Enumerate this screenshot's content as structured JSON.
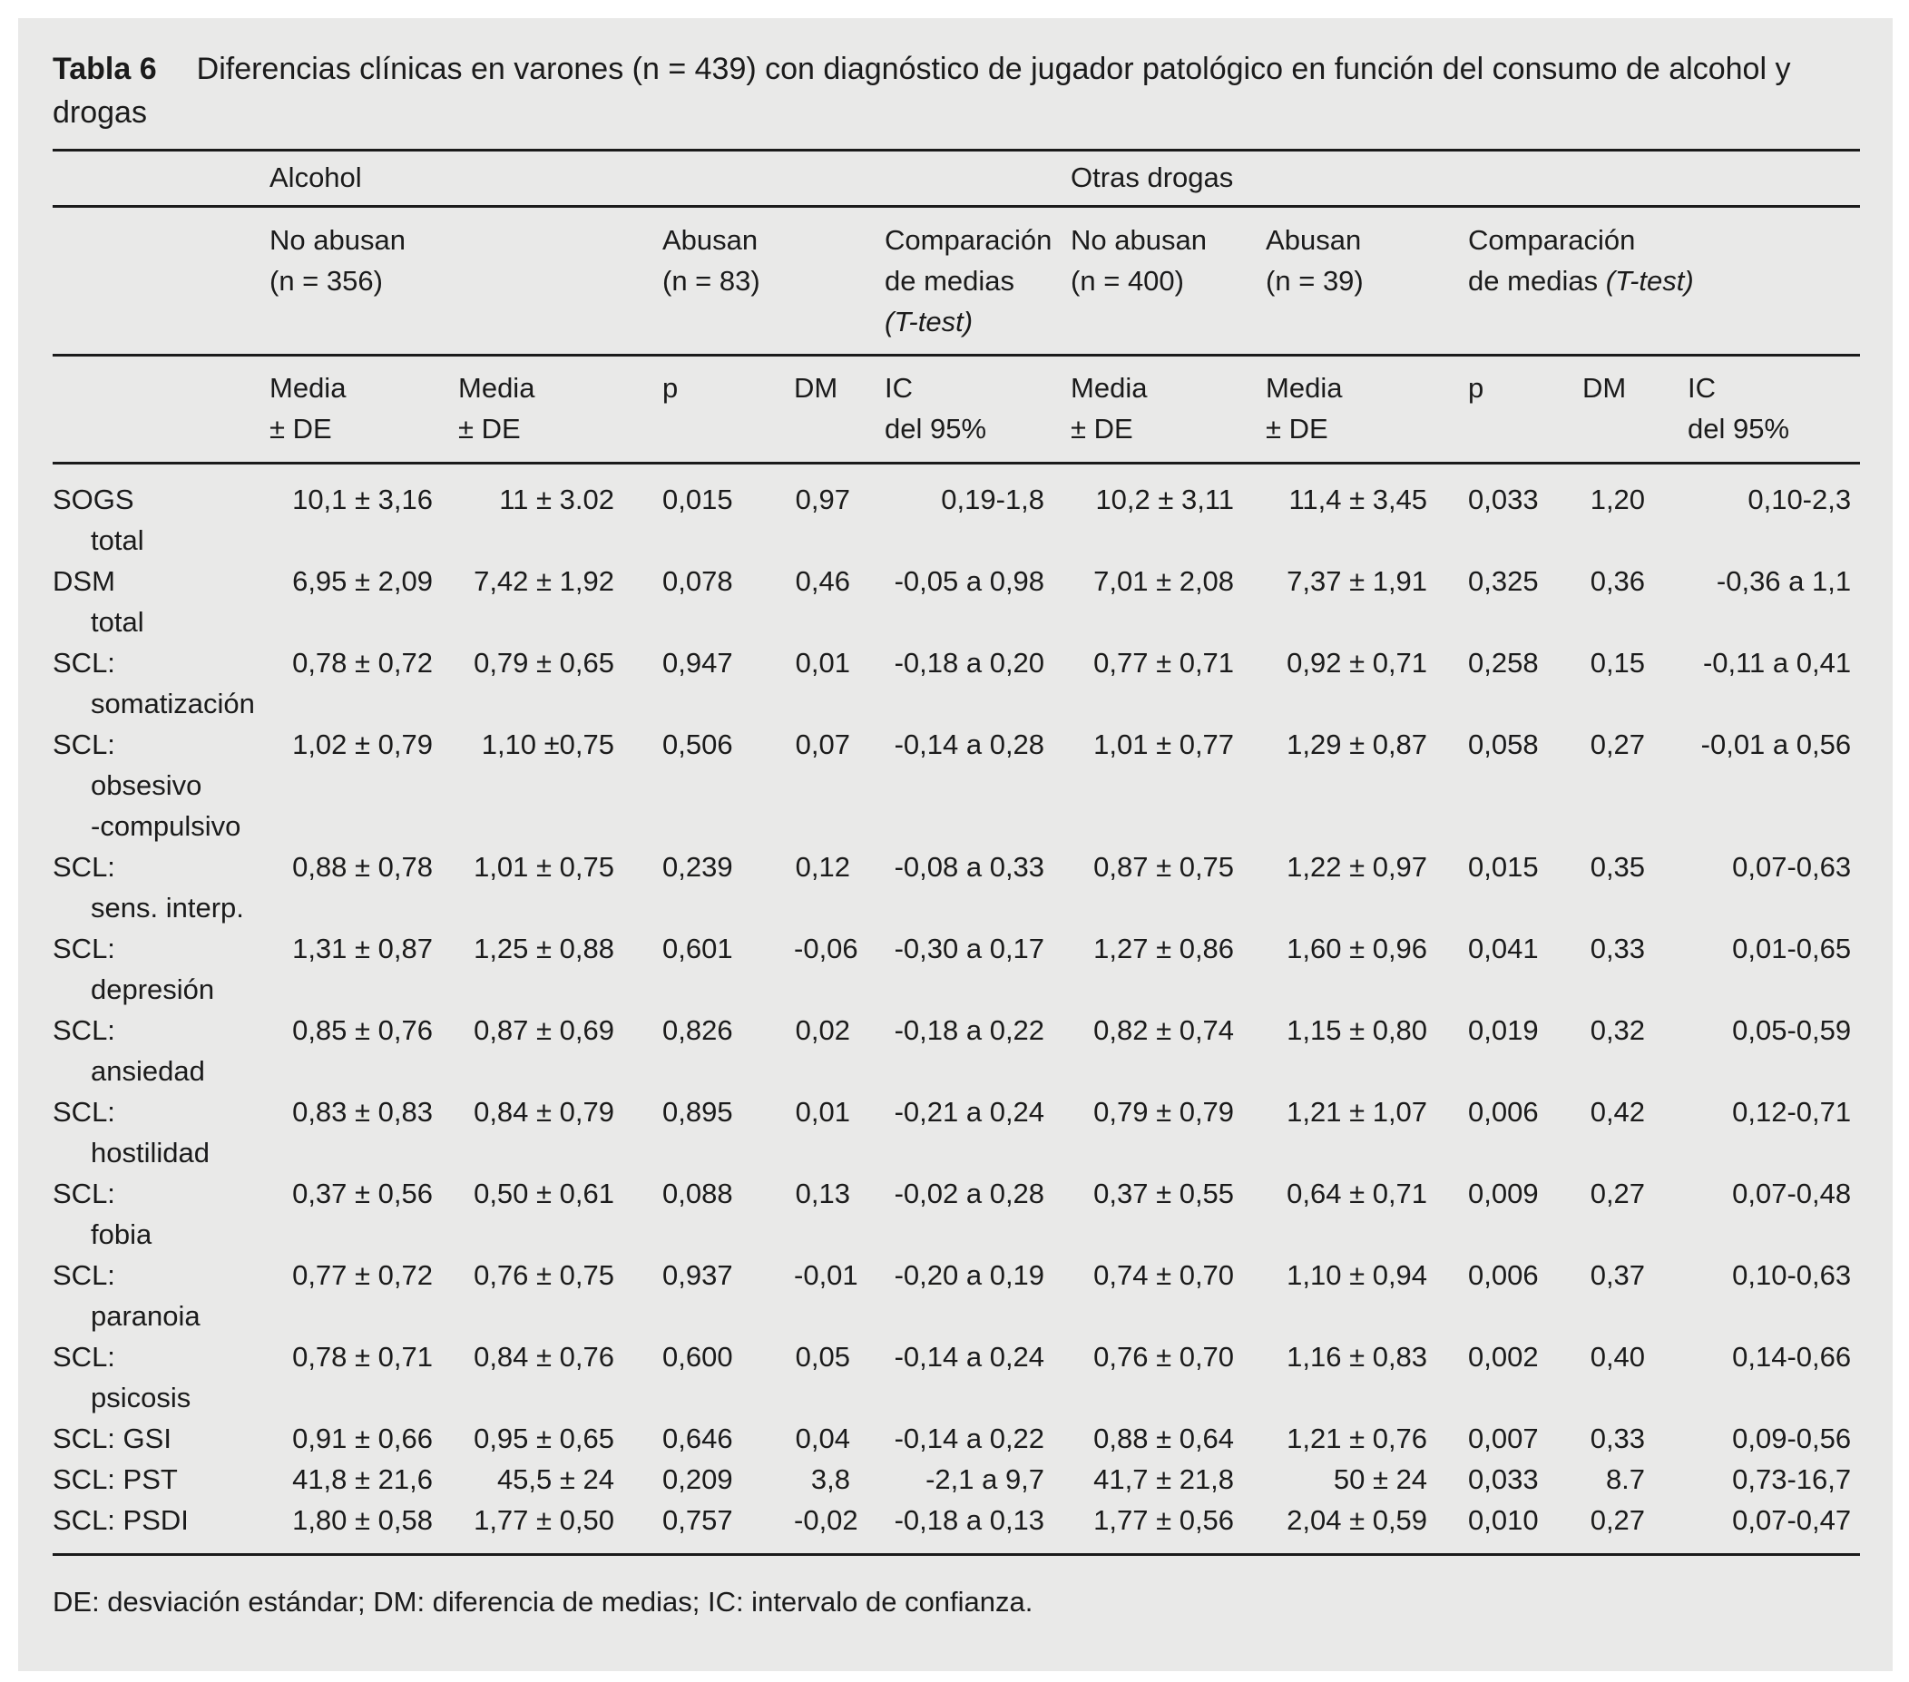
{
  "page": {
    "panel_background": "#e9e9e8",
    "page_background": "#ffffff",
    "text_color": "#1b1b1b",
    "rule_color": "#1b1b1b"
  },
  "title": {
    "label": "Tabla 6",
    "text": "Diferencias clínicas en varones (n = 439) con diagnóstico de jugador patológico en función del consumo de alcohol y drogas"
  },
  "table": {
    "top_groups": {
      "alcohol": "Alcohol",
      "drugs": "Otras drogas"
    },
    "subgroups": {
      "alcohol_no_abuse": {
        "name": "No abusan",
        "n": "(n = 356)"
      },
      "alcohol_abuse": {
        "name": "Abusan",
        "n": "(n = 83)"
      },
      "alcohol_comparison": {
        "l1": "Comparación",
        "l2": "de medias",
        "l3": "(T-test)"
      },
      "drugs_no_abuse": {
        "name": "No abusan",
        "n": "(n = 400)"
      },
      "drugs_abuse": {
        "name": "Abusan",
        "n": "(n = 39)"
      },
      "drugs_comparison": {
        "l1": "Comparación",
        "l2a": "de medias ",
        "l2b": "(T-test)"
      }
    },
    "columns": {
      "media_a_no": {
        "l1": "Media",
        "l2": "± DE"
      },
      "media_a_ab": {
        "l1": "Media",
        "l2": "± DE"
      },
      "p_a": "p",
      "dm_a": "DM",
      "ic_a": {
        "l1": "IC",
        "l2": "del 95%"
      },
      "media_d_no": {
        "l1": "Media",
        "l2": "± DE"
      },
      "media_d_ab": {
        "l1": "Media",
        "l2": "± DE"
      },
      "p_d": "p",
      "dm_d": "DM",
      "ic_d": {
        "l1": "IC",
        "l2": "del 95%"
      }
    },
    "rows": [
      {
        "label_lines": [
          "SOGS",
          "total"
        ],
        "cells": [
          "10,1 ± 3,16",
          "11 ± 3.02",
          "0,015",
          "0,97",
          "0,19-1,8",
          "10,2 ± 3,11",
          "11,4 ± 3,45",
          "0,033",
          "1,20",
          "0,10-2,3"
        ]
      },
      {
        "label_lines": [
          "DSM",
          "total"
        ],
        "cells": [
          "6,95 ± 2,09",
          "7,42 ± 1,92",
          "0,078",
          "0,46",
          "-0,05 a 0,98",
          "7,01 ± 2,08",
          "7,37 ± 1,91",
          "0,325",
          "0,36",
          "-0,36 a 1,1"
        ]
      },
      {
        "label_lines": [
          "SCL:",
          "somatización"
        ],
        "cells": [
          "0,78 ± 0,72",
          "0,79 ± 0,65",
          "0,947",
          "0,01",
          "-0,18 a 0,20",
          "0,77 ± 0,71",
          "0,92 ± 0,71",
          "0,258",
          "0,15",
          "-0,11 a 0,41"
        ]
      },
      {
        "label_lines": [
          "SCL:",
          "obsesivo",
          "-compulsivo"
        ],
        "cells": [
          "1,02 ± 0,79",
          "1,10 ±0,75",
          "0,506",
          "0,07",
          "-0,14 a 0,28",
          "1,01 ± 0,77",
          "1,29 ± 0,87",
          "0,058",
          "0,27",
          "-0,01 a 0,56"
        ]
      },
      {
        "label_lines": [
          "SCL:",
          "sens. interp."
        ],
        "cells": [
          "0,88 ± 0,78",
          "1,01 ± 0,75",
          "0,239",
          "0,12",
          "-0,08 a 0,33",
          "0,87 ± 0,75",
          "1,22 ± 0,97",
          "0,015",
          "0,35",
          "0,07-0,63"
        ]
      },
      {
        "label_lines": [
          "SCL:",
          "depresión"
        ],
        "cells": [
          "1,31 ± 0,87",
          "1,25 ± 0,88",
          "0,601",
          "-0,06",
          "-0,30 a 0,17",
          "1,27 ± 0,86",
          "1,60 ± 0,96",
          "0,041",
          "0,33",
          "0,01-0,65"
        ]
      },
      {
        "label_lines": [
          "SCL:",
          "ansiedad"
        ],
        "cells": [
          "0,85 ± 0,76",
          "0,87 ± 0,69",
          "0,826",
          "0,02",
          "-0,18 a 0,22",
          "0,82 ± 0,74",
          "1,15 ± 0,80",
          "0,019",
          "0,32",
          "0,05-0,59"
        ]
      },
      {
        "label_lines": [
          "SCL:",
          "hostilidad"
        ],
        "cells": [
          "0,83 ± 0,83",
          "0,84 ± 0,79",
          "0,895",
          "0,01",
          "-0,21 a 0,24",
          "0,79 ± 0,79",
          "1,21 ± 1,07",
          "0,006",
          "0,42",
          "0,12-0,71"
        ]
      },
      {
        "label_lines": [
          "SCL:",
          "fobia"
        ],
        "cells": [
          "0,37 ± 0,56",
          "0,50 ± 0,61",
          "0,088",
          "0,13",
          "-0,02 a 0,28",
          "0,37 ± 0,55",
          "0,64 ± 0,71",
          "0,009",
          "0,27",
          "0,07-0,48"
        ]
      },
      {
        "label_lines": [
          "SCL:",
          "paranoia"
        ],
        "cells": [
          "0,77 ± 0,72",
          "0,76 ± 0,75",
          "0,937",
          "-0,01",
          "-0,20 a 0,19",
          "0,74 ± 0,70",
          "1,10 ± 0,94",
          "0,006",
          "0,37",
          "0,10-0,63"
        ]
      },
      {
        "label_lines": [
          "SCL:",
          "psicosis"
        ],
        "cells": [
          "0,78 ± 0,71",
          "0,84 ± 0,76",
          "0,600",
          "0,05",
          "-0,14 a 0,24",
          "0,76 ± 0,70",
          "1,16 ± 0,83",
          "0,002",
          "0,40",
          "0,14-0,66"
        ]
      },
      {
        "label_lines": [
          "SCL: GSI"
        ],
        "cells": [
          "0,91 ± 0,66",
          "0,95 ± 0,65",
          "0,646",
          "0,04",
          "-0,14 a 0,22",
          "0,88 ± 0,64",
          "1,21 ± 0,76",
          "0,007",
          "0,33",
          "0,09-0,56"
        ]
      },
      {
        "label_lines": [
          "SCL: PST"
        ],
        "cells": [
          "41,8 ± 21,6",
          "45,5 ± 24",
          "0,209",
          "3,8",
          "-2,1 a 9,7",
          "41,7 ± 21,8",
          "50 ± 24",
          "0,033",
          "8.7",
          "0,73-16,7"
        ]
      },
      {
        "label_lines": [
          "SCL: PSDI"
        ],
        "cells": [
          "1,80 ± 0,58",
          "1,77 ± 0,50",
          "0,757",
          "-0,02",
          "-0,18 a 0,13",
          "1,77 ± 0,56",
          "2,04 ± 0,59",
          "0,010",
          "0,27",
          "0,07-0,47"
        ]
      }
    ],
    "footnote": "DE: desviación estándar; DM: diferencia de medias; IC: intervalo de confianza."
  }
}
